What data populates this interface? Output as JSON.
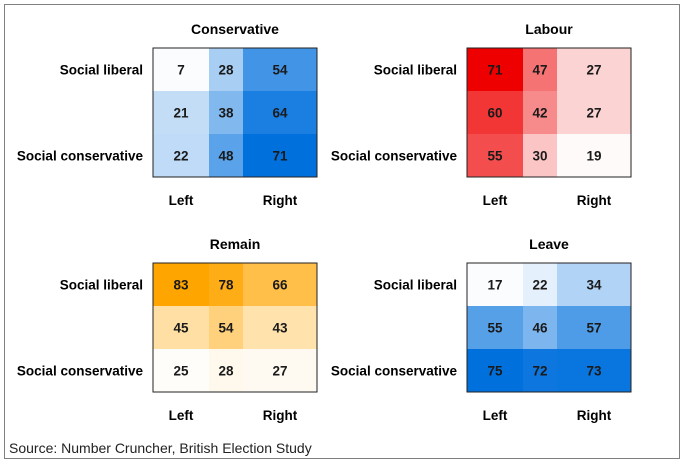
{
  "source": "Source: Number Cruncher, British Election Study",
  "row_labels": [
    "Social liberal",
    "",
    "Social conservative"
  ],
  "col_labels": [
    "Left",
    "",
    "Right"
  ],
  "chart_data": [
    {
      "type": "heatmap",
      "title": "Conservative",
      "color_scale": [
        "#ffffff",
        "#0070dd"
      ],
      "values": [
        [
          7,
          28,
          54
        ],
        [
          21,
          38,
          64
        ],
        [
          22,
          48,
          71
        ]
      ]
    },
    {
      "type": "heatmap",
      "title": "Labour",
      "color_scale": [
        "#ffffff",
        "#ee0000"
      ],
      "values": [
        [
          71,
          47,
          27
        ],
        [
          60,
          42,
          27
        ],
        [
          55,
          30,
          19
        ]
      ]
    },
    {
      "type": "heatmap",
      "title": "Remain",
      "color_scale": [
        "#ffffff",
        "#ffa500"
      ],
      "values": [
        [
          83,
          78,
          66
        ],
        [
          45,
          54,
          43
        ],
        [
          25,
          28,
          27
        ]
      ]
    },
    {
      "type": "heatmap",
      "title": "Leave",
      "color_scale": [
        "#ffffff",
        "#0070dd"
      ],
      "values": [
        [
          17,
          22,
          34
        ],
        [
          55,
          46,
          57
        ],
        [
          75,
          72,
          73
        ]
      ]
    }
  ]
}
